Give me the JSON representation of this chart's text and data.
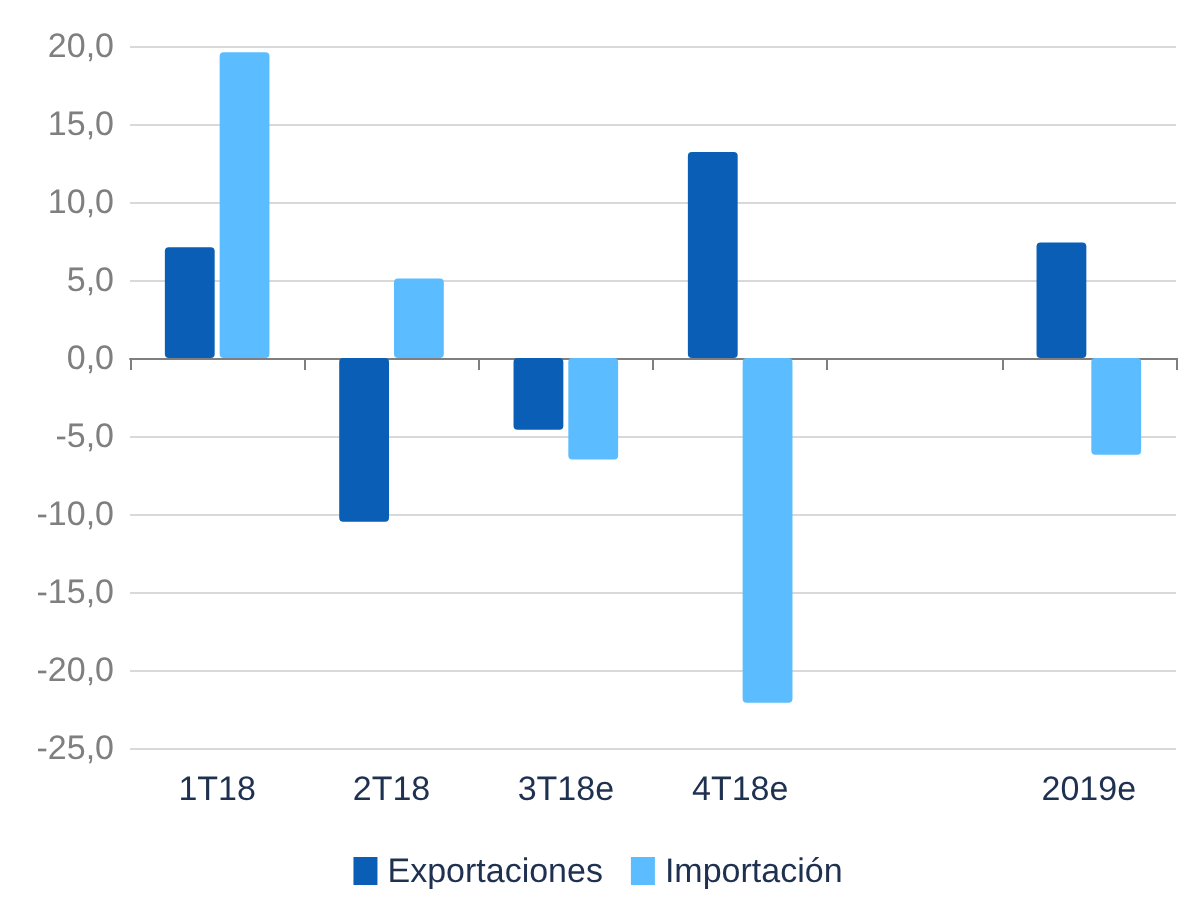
{
  "chart_data": {
    "type": "bar",
    "categories": [
      "1T18",
      "2T18",
      "3T18e",
      "4T18e",
      null,
      "2019e"
    ],
    "series": [
      {
        "name": "Exportaciones",
        "color": "#0a5eb5",
        "values": [
          7.1,
          -10.5,
          -4.6,
          13.2,
          null,
          7.4
        ]
      },
      {
        "name": "Importación",
        "color": "#5bbdff",
        "values": [
          19.6,
          5.1,
          -6.5,
          -22.1,
          null,
          -6.2
        ]
      }
    ],
    "ylim": [
      -25,
      20
    ],
    "yticks": [
      {
        "value": -25,
        "label": "-25,0"
      },
      {
        "value": -20,
        "label": "-20,0"
      },
      {
        "value": -15,
        "label": "-15,0"
      },
      {
        "value": -10,
        "label": "-10,0"
      },
      {
        "value": -5,
        "label": "-5,0"
      },
      {
        "value": 0,
        "label": "0,0"
      },
      {
        "value": 5,
        "label": "5,0"
      },
      {
        "value": 10,
        "label": "10,0"
      },
      {
        "value": 15,
        "label": "15,0"
      },
      {
        "value": 20,
        "label": "20,0"
      }
    ],
    "grid": "y",
    "legend": "bottom"
  }
}
